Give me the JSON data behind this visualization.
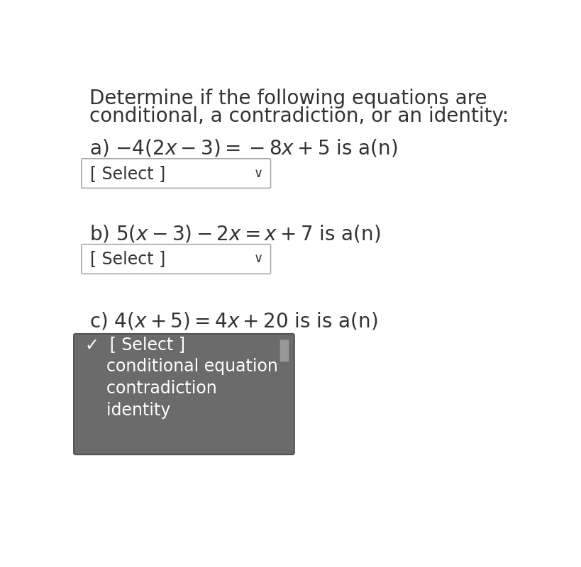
{
  "bg_color": "#ffffff",
  "title_line1": "Determine if the following equations are",
  "title_line2": "conditional, a contradiction, or an identity:",
  "select_text": "[ Select ]",
  "dropdown_bg": "#6b6b6b",
  "dropdown_text_color": "#ffffff",
  "dropdown_items": [
    "✓  [ Select ]",
    "    conditional equation",
    "    contradiction",
    "    identity"
  ],
  "box_border_color": "#aaaaaa",
  "text_color": "#333333",
  "title_fontsize": 20,
  "eq_fontsize": 20,
  "select_fontsize": 17,
  "dropdown_fontsize": 17
}
